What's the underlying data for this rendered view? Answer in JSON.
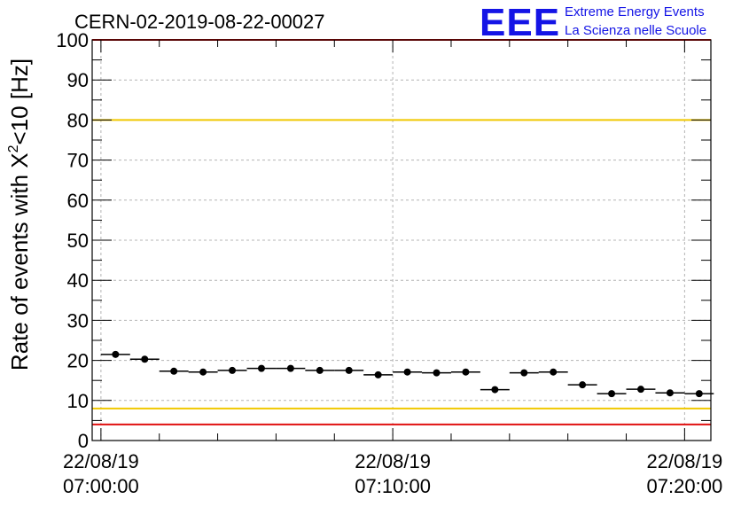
{
  "title": "CERN-02-2019-08-22-00027",
  "logo": {
    "letters": "EEE",
    "line1": "Extreme Energy Events",
    "line2": "La Scienza nelle Scuole",
    "color": "#1414e6"
  },
  "chart_data": {
    "type": "scatter",
    "title": "CERN-02-2019-08-22-00027",
    "xlabel": "",
    "ylabel": "Rate of events with X",
    "ylabel_sup": "2",
    "ylabel_tail": "<10 [Hz]",
    "ylim": [
      0,
      100
    ],
    "yticks": [
      "0",
      "10",
      "20",
      "30",
      "40",
      "50",
      "60",
      "70",
      "80",
      "90",
      "100"
    ],
    "x_unit": "minutes from 22/08/19 07:00:00",
    "xlim": [
      -0.3,
      20.9
    ],
    "xticks": [
      {
        "value": 0,
        "date": "22/08/19",
        "time": "07:00:00"
      },
      {
        "value": 10,
        "date": "22/08/19",
        "time": "07:10:00"
      },
      {
        "value": 20,
        "date": "22/08/19",
        "time": "07:20:00"
      }
    ],
    "bin_width": 1,
    "grid": true,
    "series": [
      {
        "x": [
          0.5,
          1.5,
          2.5,
          3.5,
          4.5,
          5.5,
          6.5,
          7.5,
          8.5,
          9.5,
          10.5,
          11.5,
          12.5,
          13.5,
          14.5,
          15.5,
          16.5,
          17.5,
          18.5,
          19.5,
          20.5
        ],
        "y": [
          21.5,
          20.3,
          17.3,
          17.1,
          17.5,
          18.0,
          18.0,
          17.5,
          17.5,
          16.4,
          17.1,
          16.9,
          17.1,
          12.7,
          16.9,
          17.1,
          13.9,
          11.7,
          12.8,
          11.9,
          11.7
        ]
      }
    ],
    "reference_lines": [
      {
        "y": 80,
        "color": "#f0c800"
      },
      {
        "y": 8,
        "color": "#f0c800"
      },
      {
        "y": 100,
        "color": "#e01010"
      },
      {
        "y": 4,
        "color": "#e01010"
      }
    ]
  }
}
